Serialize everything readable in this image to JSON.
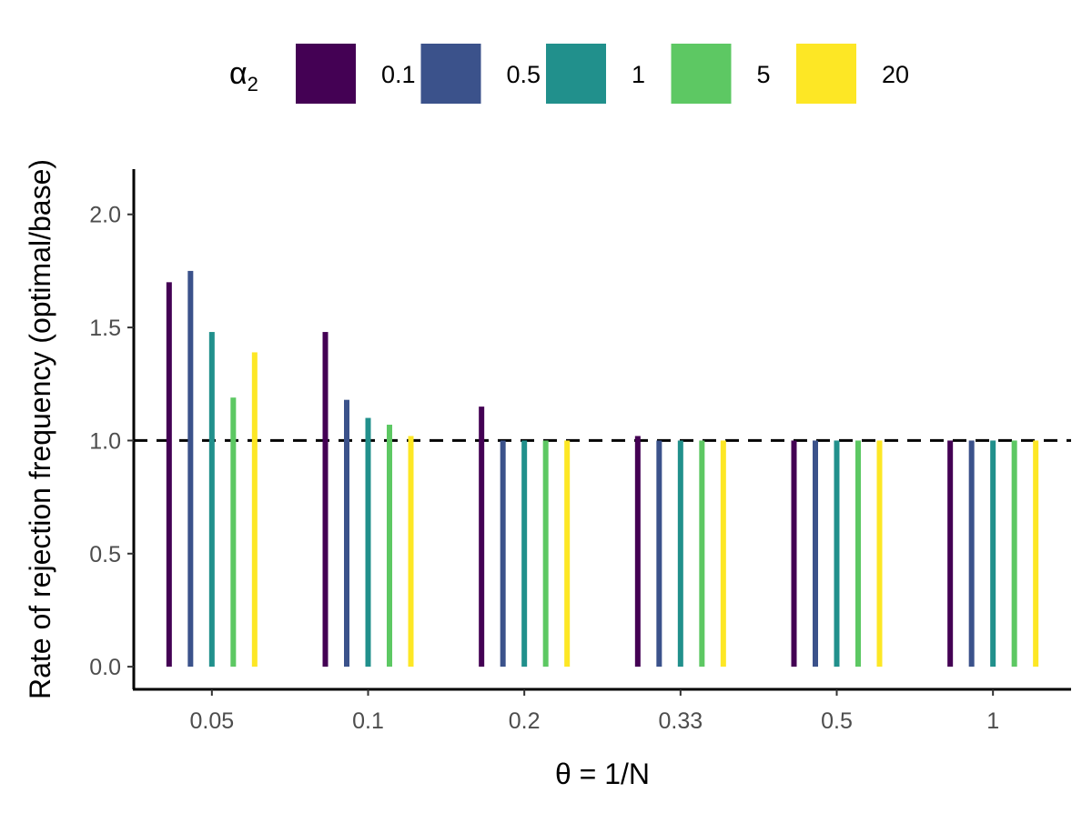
{
  "chart_data": {
    "type": "bar",
    "title": "",
    "xlabel": "θ = 1/N",
    "ylabel": "Rate of rejection frequency (optimal/base)",
    "categories": [
      "0.05",
      "0.1",
      "0.2",
      "0.33",
      "0.5",
      "1"
    ],
    "ylim": [
      -0.1,
      2.2
    ],
    "yticks": [
      0.0,
      0.5,
      1.0,
      1.5,
      2.0
    ],
    "ytick_labels": [
      "0.0",
      "0.5",
      "1.0",
      "1.5",
      "2.0"
    ],
    "reference_line": {
      "y": 1.0,
      "style": "dashed",
      "color": "#000000"
    },
    "legend": {
      "title_symbol": "α",
      "title_subscript": "2",
      "position": "top"
    },
    "series": [
      {
        "name": "0.1",
        "color": "#440154",
        "values": [
          1.7,
          1.48,
          1.15,
          1.02,
          1.0,
          1.0
        ]
      },
      {
        "name": "0.5",
        "color": "#3B528B",
        "values": [
          1.75,
          1.18,
          1.0,
          1.0,
          1.0,
          1.0
        ]
      },
      {
        "name": "1",
        "color": "#21908C",
        "values": [
          1.48,
          1.1,
          1.0,
          1.0,
          1.0,
          1.0
        ]
      },
      {
        "name": "5",
        "color": "#5DC863",
        "values": [
          1.19,
          1.07,
          1.0,
          1.0,
          1.0,
          1.0
        ]
      },
      {
        "name": "20",
        "color": "#FDE725",
        "values": [
          1.39,
          1.02,
          1.0,
          1.0,
          1.0,
          1.0
        ]
      }
    ]
  }
}
